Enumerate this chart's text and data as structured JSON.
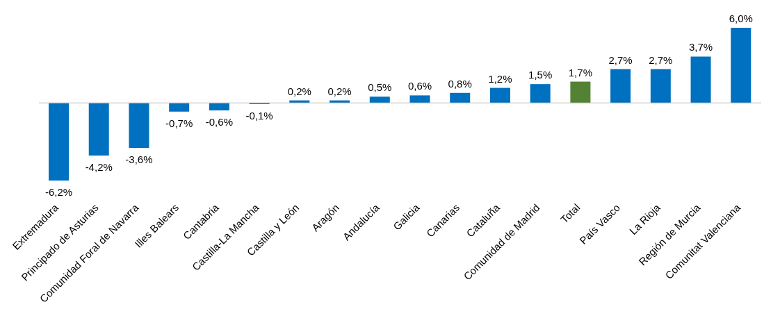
{
  "chart_data": {
    "type": "bar",
    "categories": [
      "Extremadura",
      "Principado de Asturias",
      "Comunidad Foral de Navarra",
      "Illes Balears",
      "Cantabria",
      "Castilla-La Mancha",
      "Castilla y León",
      "Aragón",
      "Andalucía",
      "Galicia",
      "Canarias",
      "Cataluña",
      "Comunidad de Madrid",
      "Total",
      "País Vasco",
      "La Rioja",
      "Región de Murcia",
      "Comunitat Valenciana"
    ],
    "values": [
      -6.2,
      -4.2,
      -3.6,
      -0.7,
      -0.6,
      -0.1,
      0.2,
      0.2,
      0.5,
      0.6,
      0.8,
      1.2,
      1.5,
      1.7,
      2.7,
      2.7,
      3.7,
      6.0
    ],
    "value_labels": [
      "-6,2%",
      "-4,2%",
      "-3,6%",
      "-0,7%",
      "-0,6%",
      "-0,1%",
      "0,2%",
      "0,2%",
      "0,5%",
      "0,6%",
      "0,8%",
      "1,2%",
      "1,5%",
      "1,7%",
      "2,7%",
      "2,7%",
      "3,7%",
      "6,0%"
    ],
    "colors": [
      "#0070c0",
      "#0070c0",
      "#0070c0",
      "#0070c0",
      "#0070c0",
      "#0070c0",
      "#0070c0",
      "#0070c0",
      "#0070c0",
      "#0070c0",
      "#0070c0",
      "#0070c0",
      "#0070c0",
      "#548235",
      "#0070c0",
      "#0070c0",
      "#0070c0",
      "#0070c0"
    ]
  }
}
